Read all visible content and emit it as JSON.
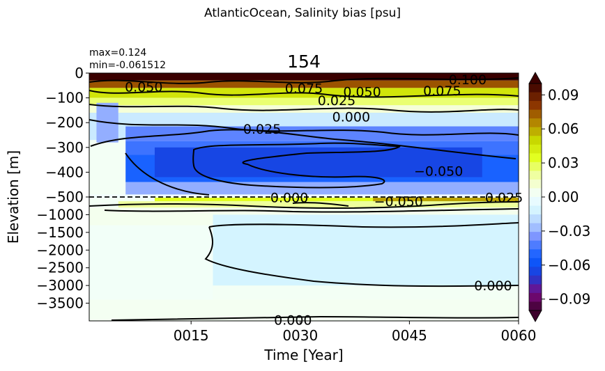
{
  "suptitle": "AtlanticOcean, Salinity bias [psu]",
  "title": "154",
  "stats": {
    "max": "max=0.124",
    "min": "min=-0.061512"
  },
  "chart_data": {
    "type": "heatmap",
    "xlabel": "Time [Year]",
    "ylabel": "Elevation [m]",
    "x_ticks": [
      "0015",
      "0030",
      "0045",
      "0060"
    ],
    "x_range": [
      1,
      60
    ],
    "y_ticks_upper": [
      "0",
      "−100",
      "−200",
      "−300",
      "−400",
      "−500"
    ],
    "y_ticks_lower": [
      "−1000",
      "−1500",
      "−2000",
      "−2500",
      "−3000",
      "−3500"
    ],
    "y_upper_range": [
      -500,
      0
    ],
    "y_lower_range": [
      -4000,
      -500
    ],
    "split_depth": -500,
    "colorbar": {
      "ticks": [
        "0.09",
        "0.06",
        "0.03",
        "0.00",
        "−0.03",
        "−0.06",
        "−0.09"
      ],
      "range": [
        -0.1,
        0.1
      ],
      "extend": "both",
      "levels": 26
    },
    "contour_labels": [
      {
        "text": "0.050",
        "x": 8.5,
        "depth": -55
      },
      {
        "text": "0.075",
        "x": 30.5,
        "depth": -60
      },
      {
        "text": "0.050",
        "x": 38.5,
        "depth": -75
      },
      {
        "text": "0.075",
        "x": 49.5,
        "depth": -70
      },
      {
        "text": "0.100",
        "x": 53,
        "depth": -25
      },
      {
        "text": "0.025",
        "x": 35,
        "depth": -110
      },
      {
        "text": "0.000",
        "x": 37,
        "depth": -175
      },
      {
        "text": "−0.025",
        "x": 24,
        "depth": -225
      },
      {
        "text": "−0.050",
        "x": 49,
        "depth": -395
      },
      {
        "text": "0.000",
        "x": 28.5,
        "depth": -510
      },
      {
        "text": "−0.050",
        "x": 43.5,
        "depth": -620
      },
      {
        "text": "0.025",
        "x": 58,
        "depth": -510
      },
      {
        "text": "0.000",
        "x": 56.5,
        "depth": -3000
      },
      {
        "text": "0.000",
        "x": 29,
        "depth": -3970
      }
    ],
    "regions": [
      {
        "t0": 1,
        "t1": 61,
        "d0": 0,
        "d1": -30,
        "value": 0.1
      },
      {
        "t0": 1,
        "t1": 61,
        "d0": -30,
        "d1": -60,
        "value": 0.075
      },
      {
        "t0": 1,
        "t1": 61,
        "d0": -60,
        "d1": -100,
        "value": 0.045
      },
      {
        "t0": 1,
        "t1": 61,
        "d0": -100,
        "d1": -130,
        "value": 0.025
      },
      {
        "t0": 1,
        "t1": 61,
        "d0": -130,
        "d1": -160,
        "value": 0.01
      },
      {
        "t0": 1,
        "t1": 61,
        "d0": -160,
        "d1": -270,
        "value": -0.015
      },
      {
        "t0": 2,
        "t1": 5,
        "d0": -120,
        "d1": -280,
        "value": -0.03
      },
      {
        "t0": 6,
        "t1": 61,
        "d0": -215,
        "d1": -275,
        "value": -0.04
      },
      {
        "t0": 6,
        "t1": 61,
        "d0": -275,
        "d1": -330,
        "value": -0.045
      },
      {
        "t0": 6,
        "t1": 61,
        "d0": -330,
        "d1": -440,
        "value": -0.052
      },
      {
        "t0": 10,
        "t1": 55,
        "d0": -300,
        "d1": -420,
        "value": -0.065
      },
      {
        "t0": 6,
        "t1": 61,
        "d0": -440,
        "d1": -490,
        "value": -0.03
      },
      {
        "t0": 1,
        "t1": 61,
        "d0": -490,
        "d1": -520,
        "value": 0.0
      },
      {
        "t0": 10,
        "t1": 61,
        "d0": -520,
        "d1": -620,
        "value": 0.035
      },
      {
        "t0": 40,
        "t1": 61,
        "d0": -520,
        "d1": -640,
        "value": 0.06
      },
      {
        "t0": 5,
        "t1": 61,
        "d0": -620,
        "d1": -800,
        "value": 0.02
      },
      {
        "t0": 1,
        "t1": 61,
        "d0": -800,
        "d1": -1300,
        "value": 0.005
      },
      {
        "t0": 18,
        "t1": 61,
        "d0": -1000,
        "d1": -3000,
        "value": -0.012
      },
      {
        "t0": 1,
        "t1": 18,
        "d0": -1300,
        "d1": -3400,
        "value": 0.002
      },
      {
        "t0": 1,
        "t1": 61,
        "d0": -3400,
        "d1": -4000,
        "value": 0.004
      }
    ]
  }
}
